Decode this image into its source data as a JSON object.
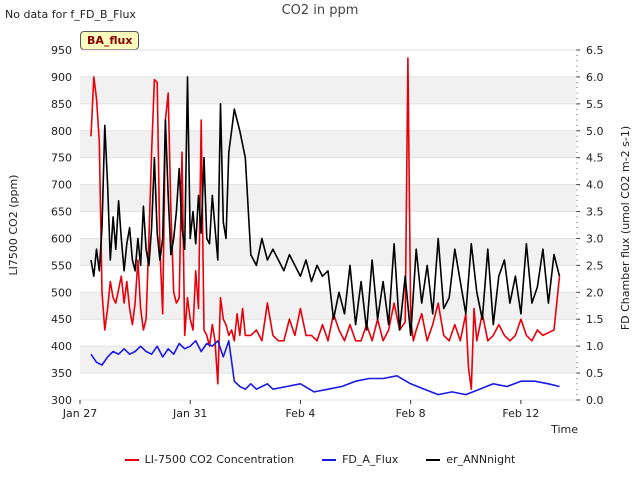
{
  "header": {
    "no_data_text": "No data for f_FD_B_Flux",
    "title": "CO2 in ppm",
    "badge": "BA_flux"
  },
  "chart_data": {
    "type": "line",
    "title": "CO2 in ppm",
    "xlabel": "Time",
    "ylabel_left": "LI7500 CO2 (ppm)",
    "ylabel_right": "FD Chamber flux (umol CO2 m-2 s-1)",
    "xlim": [
      27,
      45
    ],
    "ylim_left": [
      300,
      950
    ],
    "ylim_right": [
      0,
      6.5
    ],
    "x_ticks": [
      {
        "value": 27,
        "label": "Jan 27"
      },
      {
        "value": 31,
        "label": "Jan 31"
      },
      {
        "value": 35,
        "label": "Feb 4"
      },
      {
        "value": 39,
        "label": "Feb 8"
      },
      {
        "value": 43,
        "label": "Feb 12"
      }
    ],
    "y_ticks_left": [
      300,
      350,
      400,
      450,
      500,
      550,
      600,
      650,
      700,
      750,
      800,
      850,
      900,
      950
    ],
    "y_ticks_right": [
      0.0,
      0.5,
      1.0,
      1.5,
      2.0,
      2.5,
      3.0,
      3.5,
      4.0,
      4.5,
      5.0,
      5.5,
      6.0,
      6.5
    ],
    "legend_position": "bottom",
    "series": [
      {
        "name": "LI-7500 CO2 Concentration",
        "axis": "left",
        "color": "#e8000b",
        "x": [
          27.4,
          27.5,
          27.6,
          27.7,
          27.8,
          27.9,
          28.0,
          28.1,
          28.2,
          28.3,
          28.5,
          28.6,
          28.7,
          28.8,
          28.9,
          29.0,
          29.1,
          29.2,
          29.3,
          29.4,
          29.5,
          29.6,
          29.7,
          29.8,
          29.9,
          30.0,
          30.1,
          30.2,
          30.3,
          30.4,
          30.5,
          30.6,
          30.7,
          30.8,
          30.9,
          31.0,
          31.1,
          31.2,
          31.3,
          31.4,
          31.5,
          31.6,
          31.7,
          31.8,
          31.9,
          32.0,
          32.1,
          32.2,
          32.3,
          32.4,
          32.5,
          32.6,
          32.7,
          32.8,
          32.9,
          33.0,
          33.2,
          33.4,
          33.6,
          33.8,
          34.0,
          34.2,
          34.4,
          34.6,
          34.8,
          35.0,
          35.2,
          35.4,
          35.6,
          35.8,
          36.0,
          36.2,
          36.4,
          36.6,
          36.8,
          37.0,
          37.2,
          37.4,
          37.6,
          37.8,
          38.0,
          38.2,
          38.4,
          38.6,
          38.8,
          38.9,
          39.0,
          39.1,
          39.2,
          39.4,
          39.6,
          39.8,
          40.0,
          40.2,
          40.4,
          40.6,
          40.8,
          41.0,
          41.1,
          41.2,
          41.3,
          41.4,
          41.6,
          41.8,
          42.0,
          42.2,
          42.4,
          42.6,
          42.8,
          43.0,
          43.2,
          43.4,
          43.6,
          43.8,
          44.0,
          44.2,
          44.4
        ],
        "values": [
          790,
          900,
          860,
          780,
          500,
          430,
          470,
          520,
          490,
          480,
          530,
          480,
          520,
          470,
          440,
          480,
          560,
          470,
          430,
          450,
          600,
          760,
          895,
          890,
          580,
          460,
          820,
          870,
          650,
          500,
          480,
          490,
          760,
          420,
          490,
          450,
          430,
          540,
          470,
          820,
          430,
          420,
          400,
          440,
          410,
          330,
          490,
          450,
          440,
          420,
          430,
          410,
          460,
          420,
          470,
          420,
          420,
          430,
          410,
          480,
          420,
          410,
          410,
          450,
          420,
          470,
          420,
          420,
          410,
          440,
          410,
          460,
          430,
          410,
          440,
          410,
          410,
          440,
          410,
          450,
          410,
          430,
          480,
          430,
          445,
          935,
          450,
          410,
          430,
          460,
          410,
          440,
          480,
          420,
          410,
          440,
          410,
          460,
          360,
          320,
          470,
          410,
          460,
          410,
          420,
          440,
          420,
          410,
          420,
          450,
          420,
          410,
          430,
          420,
          425,
          430,
          530
        ]
      },
      {
        "name": "FD_A_Flux",
        "axis": "right",
        "color": "#1a1ae6",
        "x": [
          27.4,
          27.6,
          27.8,
          28.0,
          28.2,
          28.4,
          28.6,
          28.8,
          29.0,
          29.2,
          29.4,
          29.6,
          29.8,
          30.0,
          30.2,
          30.4,
          30.6,
          30.8,
          31.0,
          31.2,
          31.4,
          31.6,
          31.8,
          32.0,
          32.2,
          32.4,
          32.6,
          32.8,
          33.0,
          33.2,
          33.4,
          33.6,
          33.8,
          34.0,
          34.5,
          35.0,
          35.5,
          36.0,
          36.5,
          37.0,
          37.5,
          38.0,
          38.5,
          39.0,
          39.5,
          40.0,
          40.5,
          41.0,
          41.5,
          42.0,
          42.5,
          43.0,
          43.5,
          44.0,
          44.4
        ],
        "values": [
          0.85,
          0.7,
          0.65,
          0.8,
          0.9,
          0.85,
          0.95,
          0.85,
          0.9,
          1.0,
          0.9,
          0.85,
          1.0,
          0.8,
          0.95,
          0.85,
          1.05,
          0.95,
          1.0,
          1.1,
          0.9,
          1.05,
          1.0,
          1.1,
          0.8,
          1.1,
          0.35,
          0.25,
          0.2,
          0.3,
          0.2,
          0.25,
          0.3,
          0.2,
          0.25,
          0.3,
          0.15,
          0.2,
          0.25,
          0.35,
          0.4,
          0.4,
          0.45,
          0.3,
          0.2,
          0.1,
          0.15,
          0.1,
          0.2,
          0.3,
          0.25,
          0.35,
          0.35,
          0.3,
          0.25
        ]
      },
      {
        "name": "er_ANNnight",
        "axis": "right",
        "color": "#000000",
        "x": [
          27.4,
          27.5,
          27.6,
          27.7,
          27.8,
          27.9,
          28.0,
          28.1,
          28.2,
          28.3,
          28.4,
          28.5,
          28.6,
          28.7,
          28.8,
          28.9,
          29.0,
          29.1,
          29.2,
          29.3,
          29.4,
          29.5,
          29.6,
          29.7,
          29.8,
          29.9,
          30.0,
          30.1,
          30.2,
          30.3,
          30.4,
          30.5,
          30.6,
          30.7,
          30.8,
          30.9,
          31.0,
          31.1,
          31.2,
          31.3,
          31.4,
          31.5,
          31.6,
          31.7,
          31.8,
          31.9,
          32.0,
          32.1,
          32.2,
          32.3,
          32.4,
          32.5,
          32.6,
          32.8,
          33.0,
          33.2,
          33.4,
          33.6,
          33.8,
          34.0,
          34.2,
          34.4,
          34.6,
          34.8,
          35.0,
          35.2,
          35.4,
          35.6,
          35.8,
          36.0,
          36.2,
          36.4,
          36.6,
          36.8,
          37.0,
          37.2,
          37.4,
          37.6,
          37.8,
          38.0,
          38.2,
          38.4,
          38.6,
          38.8,
          39.0,
          39.2,
          39.4,
          39.6,
          39.8,
          40.0,
          40.2,
          40.4,
          40.6,
          40.8,
          41.0,
          41.2,
          41.4,
          41.6,
          41.8,
          42.0,
          42.2,
          42.4,
          42.6,
          42.8,
          43.0,
          43.2,
          43.4,
          43.6,
          43.8,
          44.0,
          44.2,
          44.4
        ],
        "values": [
          2.6,
          2.3,
          2.8,
          2.4,
          3.2,
          5.1,
          4.0,
          2.6,
          3.4,
          2.8,
          3.7,
          3.0,
          2.4,
          2.9,
          3.2,
          2.6,
          2.4,
          3.0,
          2.5,
          3.6,
          2.8,
          2.5,
          3.2,
          4.5,
          3.1,
          2.6,
          3.0,
          5.2,
          3.8,
          2.7,
          3.0,
          3.5,
          4.3,
          3.2,
          2.8,
          6.0,
          3.0,
          3.5,
          2.9,
          3.8,
          3.1,
          4.5,
          3.0,
          2.9,
          3.8,
          3.2,
          2.6,
          5.5,
          3.3,
          3.0,
          4.6,
          5.0,
          5.4,
          5.0,
          4.5,
          2.7,
          2.5,
          3.0,
          2.6,
          2.8,
          2.6,
          2.4,
          2.7,
          2.5,
          2.3,
          2.6,
          2.2,
          2.5,
          2.3,
          2.4,
          1.5,
          2.0,
          1.6,
          2.5,
          1.4,
          2.2,
          1.3,
          2.6,
          1.5,
          2.2,
          1.4,
          2.9,
          1.3,
          2.3,
          1.2,
          2.8,
          1.8,
          2.5,
          1.6,
          3.0,
          1.7,
          1.9,
          2.8,
          2.2,
          1.6,
          2.9,
          2.0,
          1.5,
          2.8,
          1.4,
          2.3,
          2.6,
          1.8,
          2.3,
          1.6,
          2.9,
          1.8,
          2.1,
          2.8,
          1.8,
          2.7,
          2.3
        ]
      }
    ]
  }
}
